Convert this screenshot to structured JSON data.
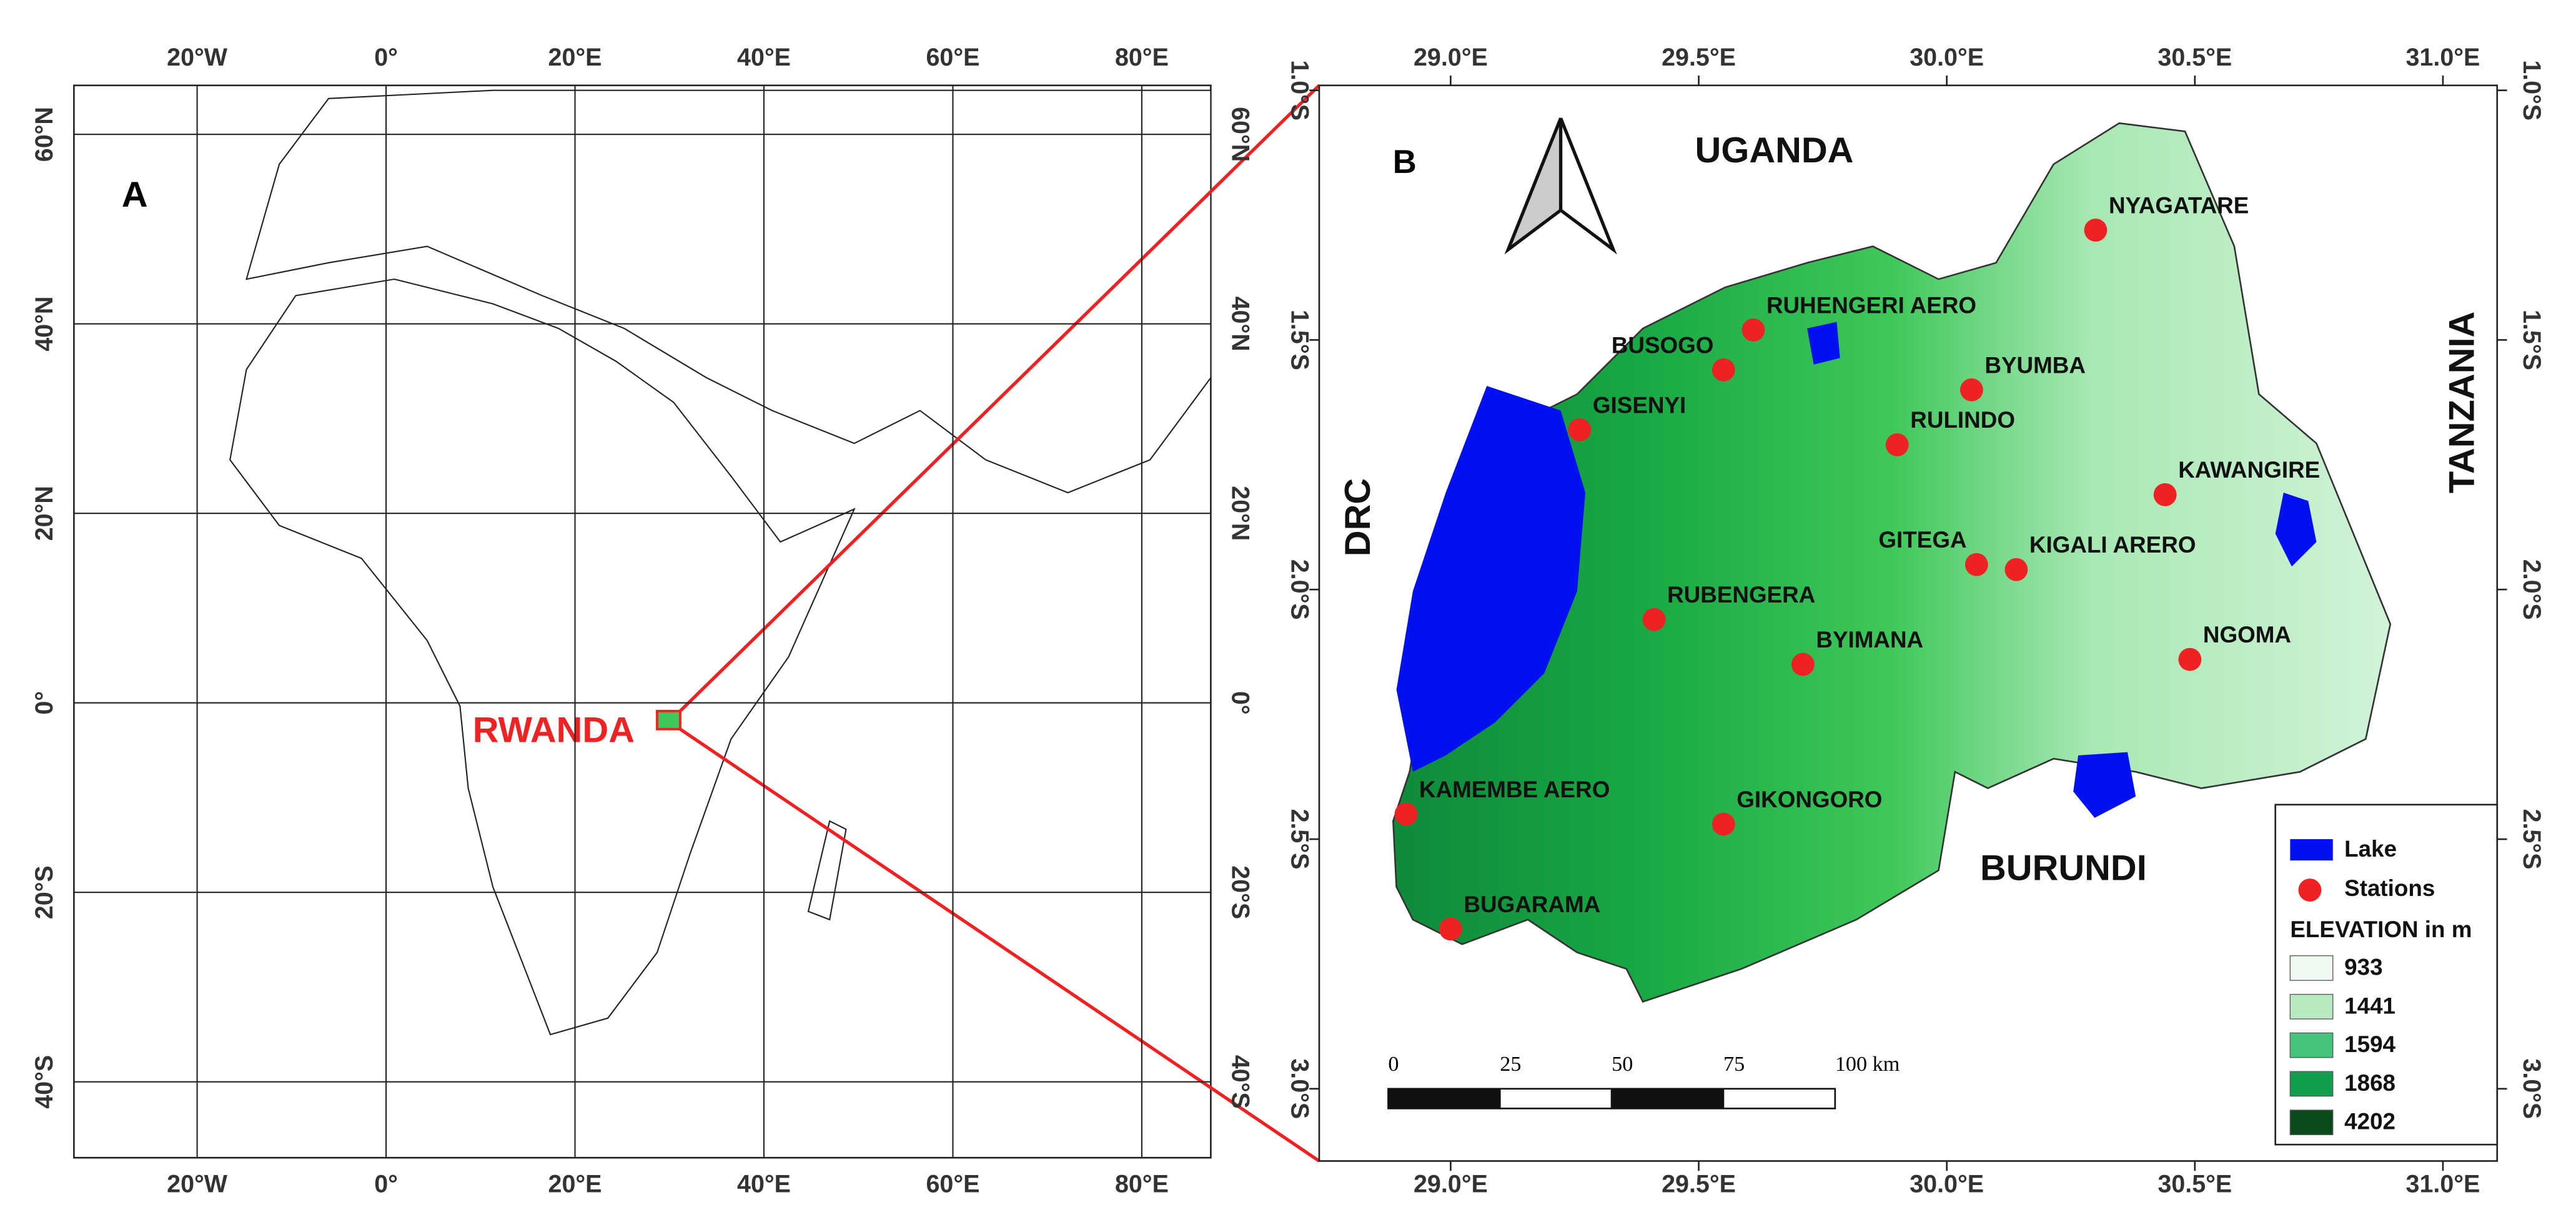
{
  "panel_a": {
    "label": "A",
    "highlight_label": "RWANDA",
    "xticks": [
      {
        "value": -20,
        "label": "20°W"
      },
      {
        "value": 0,
        "label": "0°"
      },
      {
        "value": 20,
        "label": "20°E"
      },
      {
        "value": 40,
        "label": "40°E"
      },
      {
        "value": 60,
        "label": "60°E"
      },
      {
        "value": 80,
        "label": "80°E"
      }
    ],
    "yticks": [
      {
        "value": 60,
        "label": "60°N"
      },
      {
        "value": 40,
        "label": "40°N"
      },
      {
        "value": 20,
        "label": "20°N"
      },
      {
        "value": 0,
        "label": "0°"
      },
      {
        "value": -20,
        "label": "20°S"
      },
      {
        "value": -40,
        "label": "40°S"
      }
    ]
  },
  "panel_b": {
    "label": "B",
    "xticks": [
      {
        "value": 29.0,
        "label": "29.0°E"
      },
      {
        "value": 29.5,
        "label": "29.5°E"
      },
      {
        "value": 30.0,
        "label": "30.0°E"
      },
      {
        "value": 30.5,
        "label": "30.5°E"
      },
      {
        "value": 31.0,
        "label": "31.0°E"
      }
    ],
    "yticks": [
      {
        "value": -1.0,
        "label": "1.0°S"
      },
      {
        "value": -1.5,
        "label": "1.5°S"
      },
      {
        "value": -2.0,
        "label": "2.0°S"
      },
      {
        "value": -2.5,
        "label": "2.5°S"
      },
      {
        "value": -3.0,
        "label": "3.0°S"
      }
    ],
    "countries": [
      "UGANDA",
      "DRC",
      "TANZANIA",
      "BURUNDI"
    ],
    "stations": [
      {
        "name": "NYAGATARE",
        "lon": 30.3,
        "lat": -1.28
      },
      {
        "name": "RUHENGERI AERO",
        "lon": 29.61,
        "lat": -1.48
      },
      {
        "name": "BUSOGO",
        "lon": 29.55,
        "lat": -1.56
      },
      {
        "name": "BYUMBA",
        "lon": 30.05,
        "lat": -1.6
      },
      {
        "name": "GISENYI",
        "lon": 29.26,
        "lat": -1.68
      },
      {
        "name": "RULINDO",
        "lon": 29.9,
        "lat": -1.71
      },
      {
        "name": "KAWANGIRE",
        "lon": 30.44,
        "lat": -1.81
      },
      {
        "name": "GITEGA",
        "lon": 30.06,
        "lat": -1.95
      },
      {
        "name": "KIGALI ARERO",
        "lon": 30.14,
        "lat": -1.96
      },
      {
        "name": "RUBENGERA",
        "lon": 29.41,
        "lat": -2.06
      },
      {
        "name": "BYIMANA",
        "lon": 29.71,
        "lat": -2.15
      },
      {
        "name": "NGOMA",
        "lon": 30.49,
        "lat": -2.14
      },
      {
        "name": "KAMEMBE AERO",
        "lon": 28.91,
        "lat": -2.45
      },
      {
        "name": "GIKONGORO",
        "lon": 29.55,
        "lat": -2.47
      },
      {
        "name": "BUGARAMA",
        "lon": 29.0,
        "lat": -2.68
      }
    ],
    "scale_bar": {
      "ticks": [
        0,
        25,
        50,
        75,
        {
          "value": 100,
          "label": "100 km"
        }
      ]
    },
    "legend": {
      "items": [
        {
          "label": "Lake",
          "color": "#0010ee"
        },
        {
          "label": "Stations",
          "color": "#ee2222"
        }
      ],
      "elevation_title": "ELEVATION in m",
      "elevation": [
        {
          "value": 933,
          "color": "#f0faf0"
        },
        {
          "value": 1441,
          "color": "#b7eac0"
        },
        {
          "value": 1594,
          "color": "#44c47a"
        },
        {
          "value": 1868,
          "color": "#119e4d"
        },
        {
          "value": 4202,
          "color": "#0b4a1c"
        }
      ]
    }
  }
}
